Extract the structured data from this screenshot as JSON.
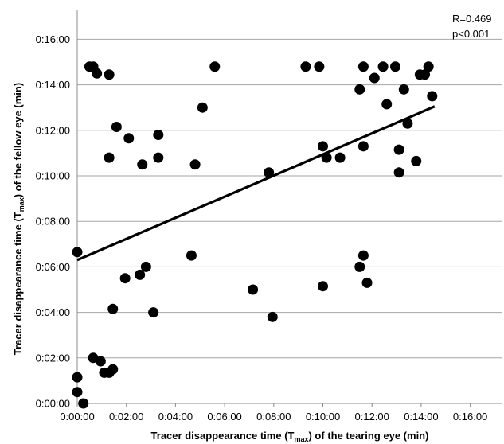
{
  "chart_data": {
    "type": "scatter",
    "x_label": {
      "main": "Tracer disappearance time (T",
      "sub": "max",
      "tail": ") of the tearing eye (min)"
    },
    "y_label": {
      "main": "Tracer disappearance time (T",
      "sub": "max",
      "tail": ") of the fellow eye (min)"
    },
    "x_unit": "minutes",
    "y_unit": "minutes",
    "xlim": [
      0,
      16
    ],
    "ylim": [
      0,
      17
    ],
    "tick_values": [
      0,
      2,
      4,
      6,
      8,
      10,
      12,
      14,
      16
    ],
    "x_tick_labels": [
      "0:00:00",
      "0:02:00",
      "0:04:00",
      "0:06:00",
      "0:08:00",
      "0:10:00",
      "0:12:00",
      "0:14:00",
      "0:16:00"
    ],
    "y_tick_labels": [
      "0:00:00",
      "0:02:00",
      "0:04:00",
      "0:06:00",
      "0:08:00",
      "0:10:00",
      "0:12:00",
      "0:14:00",
      "0:16:00"
    ],
    "grid": "horizontal",
    "annotations": [
      "R=0.469",
      "p<0.001"
    ],
    "trendline": {
      "x": [
        0,
        14.55
      ],
      "y": [
        6.3,
        13.05
      ]
    },
    "points": [
      {
        "x": 0.0,
        "y": 6.65
      },
      {
        "x": 0.0,
        "y": 1.15
      },
      {
        "x": 0.0,
        "y": 0.5
      },
      {
        "x": 0.25,
        "y": 0.0
      },
      {
        "x": 0.5,
        "y": 14.8
      },
      {
        "x": 0.65,
        "y": 14.8
      },
      {
        "x": 0.8,
        "y": 14.5
      },
      {
        "x": 0.65,
        "y": 2.0
      },
      {
        "x": 0.95,
        "y": 1.85
      },
      {
        "x": 1.1,
        "y": 1.35
      },
      {
        "x": 1.3,
        "y": 1.35
      },
      {
        "x": 1.45,
        "y": 1.5
      },
      {
        "x": 1.3,
        "y": 14.45
      },
      {
        "x": 1.3,
        "y": 10.8
      },
      {
        "x": 1.6,
        "y": 12.15
      },
      {
        "x": 1.45,
        "y": 4.15
      },
      {
        "x": 1.95,
        "y": 5.5
      },
      {
        "x": 2.1,
        "y": 11.65
      },
      {
        "x": 2.55,
        "y": 5.65
      },
      {
        "x": 2.65,
        "y": 10.5
      },
      {
        "x": 2.8,
        "y": 6.0
      },
      {
        "x": 3.1,
        "y": 4.0
      },
      {
        "x": 3.3,
        "y": 11.8
      },
      {
        "x": 3.3,
        "y": 10.8
      },
      {
        "x": 4.65,
        "y": 6.5
      },
      {
        "x": 4.8,
        "y": 10.5
      },
      {
        "x": 5.1,
        "y": 13.0
      },
      {
        "x": 5.6,
        "y": 14.8
      },
      {
        "x": 7.15,
        "y": 5.0
      },
      {
        "x": 7.8,
        "y": 10.15
      },
      {
        "x": 7.95,
        "y": 3.8
      },
      {
        "x": 9.3,
        "y": 14.8
      },
      {
        "x": 9.85,
        "y": 14.8
      },
      {
        "x": 10.0,
        "y": 11.3
      },
      {
        "x": 10.0,
        "y": 5.15
      },
      {
        "x": 10.15,
        "y": 10.8
      },
      {
        "x": 10.7,
        "y": 10.8
      },
      {
        "x": 11.5,
        "y": 13.8
      },
      {
        "x": 11.5,
        "y": 6.0
      },
      {
        "x": 11.65,
        "y": 14.8
      },
      {
        "x": 11.65,
        "y": 11.3
      },
      {
        "x": 11.65,
        "y": 6.5
      },
      {
        "x": 11.8,
        "y": 5.3
      },
      {
        "x": 12.1,
        "y": 14.3
      },
      {
        "x": 12.45,
        "y": 14.8
      },
      {
        "x": 12.6,
        "y": 13.15
      },
      {
        "x": 12.95,
        "y": 14.8
      },
      {
        "x": 13.1,
        "y": 11.15
      },
      {
        "x": 13.1,
        "y": 10.15
      },
      {
        "x": 13.3,
        "y": 13.8
      },
      {
        "x": 13.45,
        "y": 12.3
      },
      {
        "x": 13.8,
        "y": 10.65
      },
      {
        "x": 13.95,
        "y": 14.45
      },
      {
        "x": 14.15,
        "y": 14.45
      },
      {
        "x": 14.3,
        "y": 14.8
      },
      {
        "x": 14.45,
        "y": 13.5
      }
    ]
  }
}
